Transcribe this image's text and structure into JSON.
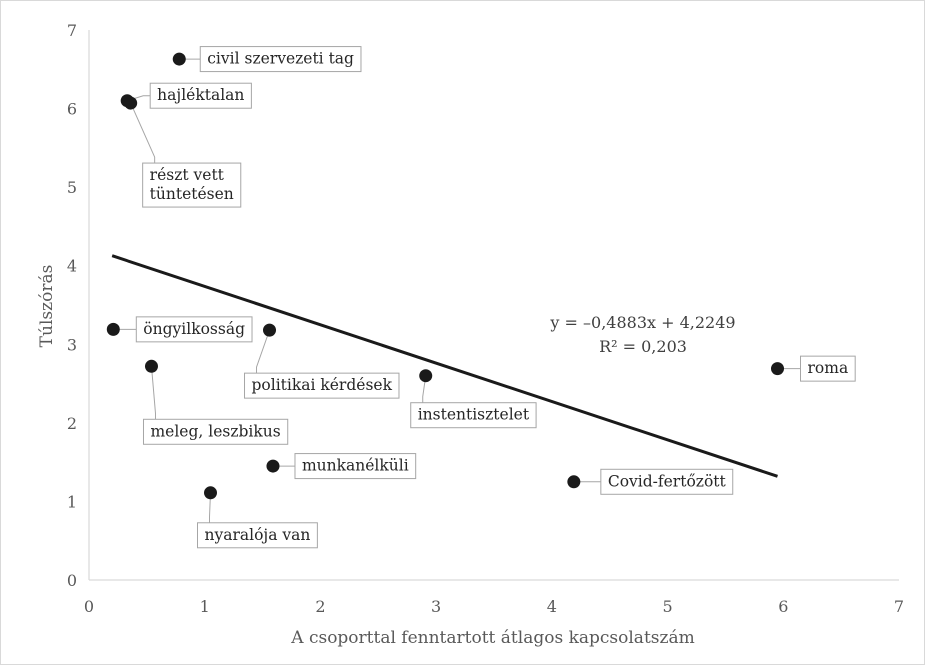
{
  "chart_data": {
    "type": "scatter",
    "xlabel": "A csoporttal fenntartott átlagos kapcsolatszám",
    "ylabel": "Túlszórás",
    "xlim": [
      0,
      7
    ],
    "ylim": [
      0,
      7
    ],
    "x_ticks": [
      "0",
      "1",
      "2",
      "3",
      "4",
      "5",
      "6",
      "7"
    ],
    "y_ticks": [
      "0",
      "1",
      "2",
      "3",
      "4",
      "5",
      "6",
      "7"
    ],
    "grid": false,
    "legend": "none",
    "points": [
      {
        "label": "civil szervezeti tag",
        "x": 0.78,
        "y": 6.63
      },
      {
        "label": "hajléktalan",
        "x": 0.33,
        "y": 6.1
      },
      {
        "label": "részt vett\ntüntetésen",
        "x": 0.36,
        "y": 6.07
      },
      {
        "label": "öngyilkosság",
        "x": 0.21,
        "y": 3.19
      },
      {
        "label": "politikai kérdések",
        "x": 1.56,
        "y": 3.18
      },
      {
        "label": "meleg, leszbikus",
        "x": 0.54,
        "y": 2.72
      },
      {
        "label": "instentisztelet",
        "x": 2.91,
        "y": 2.6
      },
      {
        "label": "roma",
        "x": 5.95,
        "y": 2.69
      },
      {
        "label": "munkanélküli",
        "x": 1.59,
        "y": 1.45
      },
      {
        "label": "Covid-fertőzött",
        "x": 4.19,
        "y": 1.25
      },
      {
        "label": "nyaralója van",
        "x": 1.05,
        "y": 1.11
      }
    ],
    "trendline": {
      "slope": -0.4883,
      "intercept": 4.2249,
      "x_range": [
        0.2,
        5.95
      ],
      "equation": "y = –0,4883x + 4,2249",
      "r2": "R² = 0,203"
    },
    "colors": {
      "point": "#1a1a1a",
      "trendline": "#1a1a1a",
      "axis": "#d9d9d9",
      "label_border": "#a6a6a6",
      "text": "#595959"
    }
  }
}
